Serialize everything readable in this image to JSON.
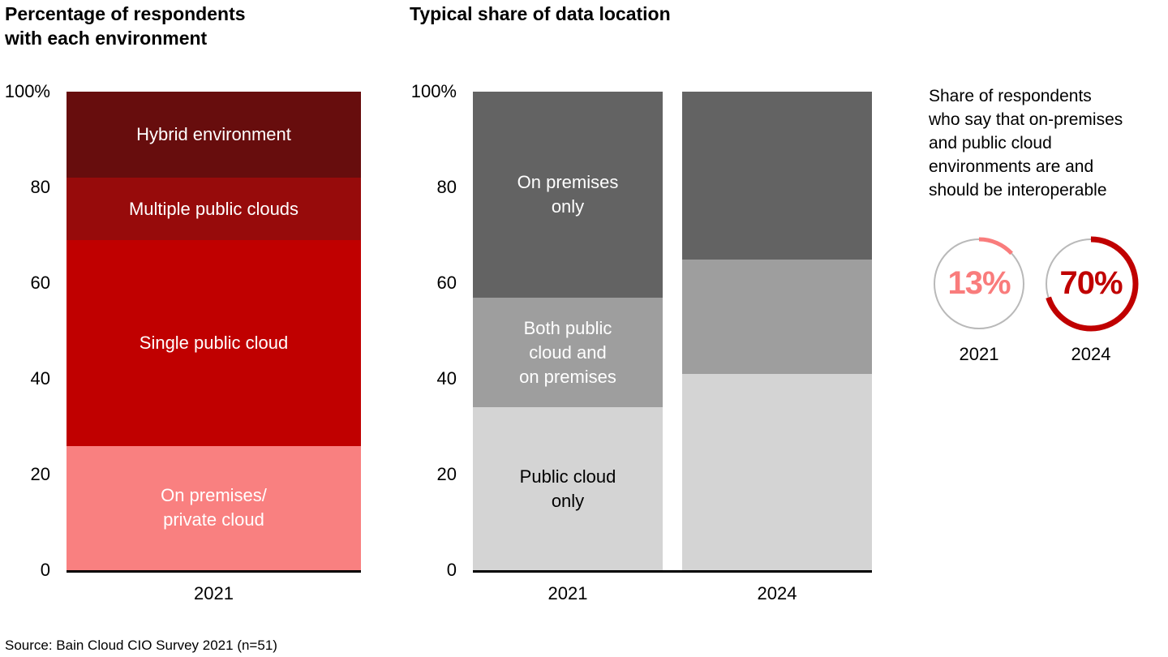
{
  "source": "Source: Bain Cloud CIO Survey 2021 (n=51)",
  "chart_data": [
    {
      "type": "bar",
      "stacked": true,
      "title": "Percentage of respondents\nwith each environment",
      "categories": [
        "2021"
      ],
      "ylim": [
        0,
        100
      ],
      "yticks": [
        {
          "value": 0,
          "label": "0"
        },
        {
          "value": 20,
          "label": "20"
        },
        {
          "value": 40,
          "label": "40"
        },
        {
          "value": 60,
          "label": "60"
        },
        {
          "value": 80,
          "label": "80"
        },
        {
          "value": 100,
          "label": "100%"
        }
      ],
      "series": [
        {
          "name": "On premises/private cloud",
          "values": [
            26
          ],
          "color": "#f98080",
          "label_text": "On premises/\nprivate cloud",
          "label_color": "#ffffff",
          "label_bar_index": 0
        },
        {
          "name": "Single public cloud",
          "values": [
            43
          ],
          "color": "#c00000",
          "label_text": "Single public cloud",
          "label_color": "#ffffff",
          "label_bar_index": 0
        },
        {
          "name": "Multiple public clouds",
          "values": [
            13
          ],
          "color": "#970b0b",
          "label_text": "Multiple public clouds",
          "label_color": "#ffffff",
          "label_bar_index": 0
        },
        {
          "name": "Hybrid environment",
          "values": [
            18
          ],
          "color": "#670d0d",
          "label_text": "Hybrid environment",
          "label_color": "#ffffff",
          "label_bar_index": 0
        }
      ]
    },
    {
      "type": "bar",
      "stacked": true,
      "title": "Typical share of data location",
      "categories": [
        "2021",
        "2024"
      ],
      "ylim": [
        0,
        100
      ],
      "yticks": [
        {
          "value": 0,
          "label": "0"
        },
        {
          "value": 20,
          "label": "20"
        },
        {
          "value": 40,
          "label": "40"
        },
        {
          "value": 60,
          "label": "60"
        },
        {
          "value": 80,
          "label": "80"
        },
        {
          "value": 100,
          "label": "100%"
        }
      ],
      "series": [
        {
          "name": "Public cloud only",
          "values": [
            34,
            41
          ],
          "color": "#d4d4d4",
          "label_text": "Public cloud\nonly",
          "label_color": "#000000",
          "label_bar_index": 0
        },
        {
          "name": "Both public cloud and on premises",
          "values": [
            23,
            24
          ],
          "color": "#9e9e9e",
          "label_text": "Both public\ncloud and\non premises",
          "label_color": "#ffffff",
          "label_bar_index": 0
        },
        {
          "name": "On premises only",
          "values": [
            43,
            35
          ],
          "color": "#636363",
          "label_text": "On premises\nonly",
          "label_color": "#ffffff",
          "label_bar_index": 0
        }
      ]
    },
    {
      "type": "pie",
      "subtype": "donut-indicators",
      "title": "Share of respondents\nwho say that on-premises\nand public cloud\nenvironments are and\nshould be interoperable",
      "items": [
        {
          "label": "2021",
          "value": 13,
          "display": "13%",
          "arc_color": "#f97c7c",
          "text_color": "#f97c7c",
          "ring_color": "#b9b9b9",
          "arc_width": 5,
          "ring_width": 2
        },
        {
          "label": "2024",
          "value": 70,
          "display": "70%",
          "arc_color": "#c00000",
          "text_color": "#c00000",
          "ring_color": "#b9b9b9",
          "arc_width": 7,
          "ring_width": 2
        }
      ]
    }
  ]
}
